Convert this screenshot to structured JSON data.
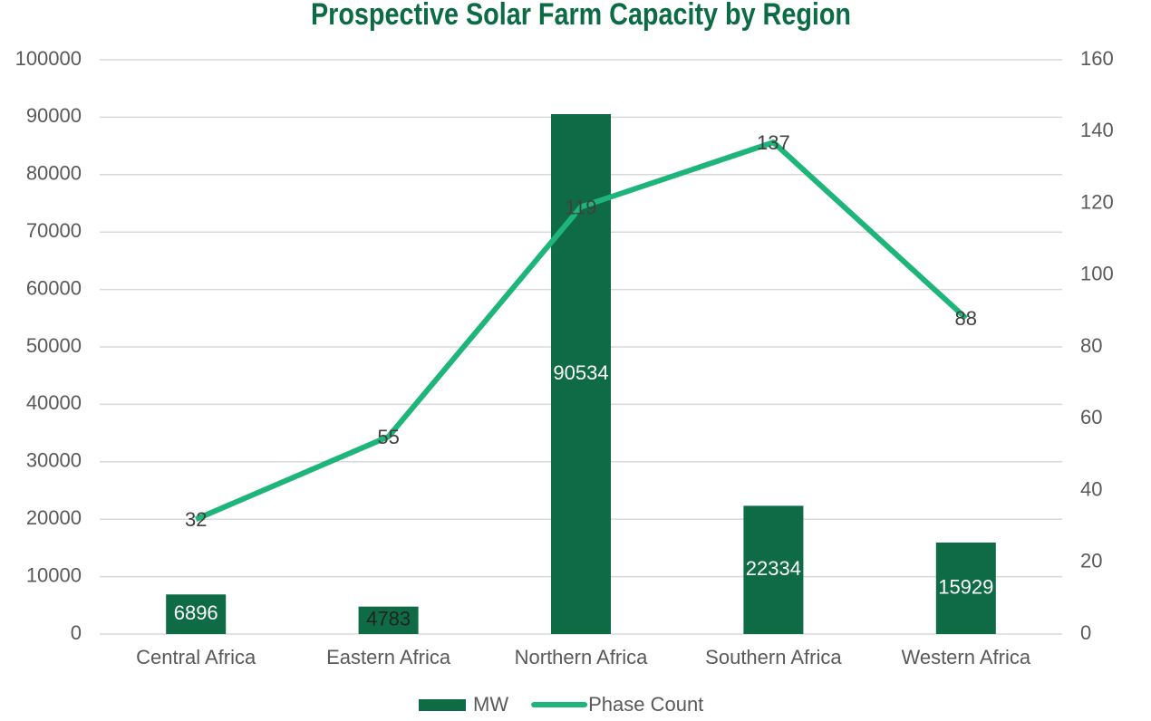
{
  "chart_data": {
    "type": "combo",
    "title": "Prospective Solar Farm Capacity by Region",
    "categories": [
      "Central Africa",
      "Eastern Africa",
      "Northern Africa",
      "Southern Africa",
      "Western Africa"
    ],
    "series": [
      {
        "name": "MW",
        "type": "bar",
        "color": "#0e6b46",
        "values": [
          6896,
          4783,
          90534,
          22334,
          15929
        ]
      },
      {
        "name": "Phase Count",
        "type": "line",
        "axis": "y2",
        "color": "#1db57a",
        "values": [
          32,
          55,
          119,
          137,
          88
        ]
      }
    ],
    "ylim": [
      0,
      100000
    ],
    "yticks": [
      0,
      10000,
      20000,
      30000,
      40000,
      50000,
      60000,
      70000,
      80000,
      90000,
      100000
    ],
    "y2lim": [
      0,
      160
    ],
    "y2ticks": [
      0,
      20,
      40,
      60,
      80,
      100,
      120,
      140,
      160
    ],
    "grid": true,
    "legend": "bottom"
  }
}
